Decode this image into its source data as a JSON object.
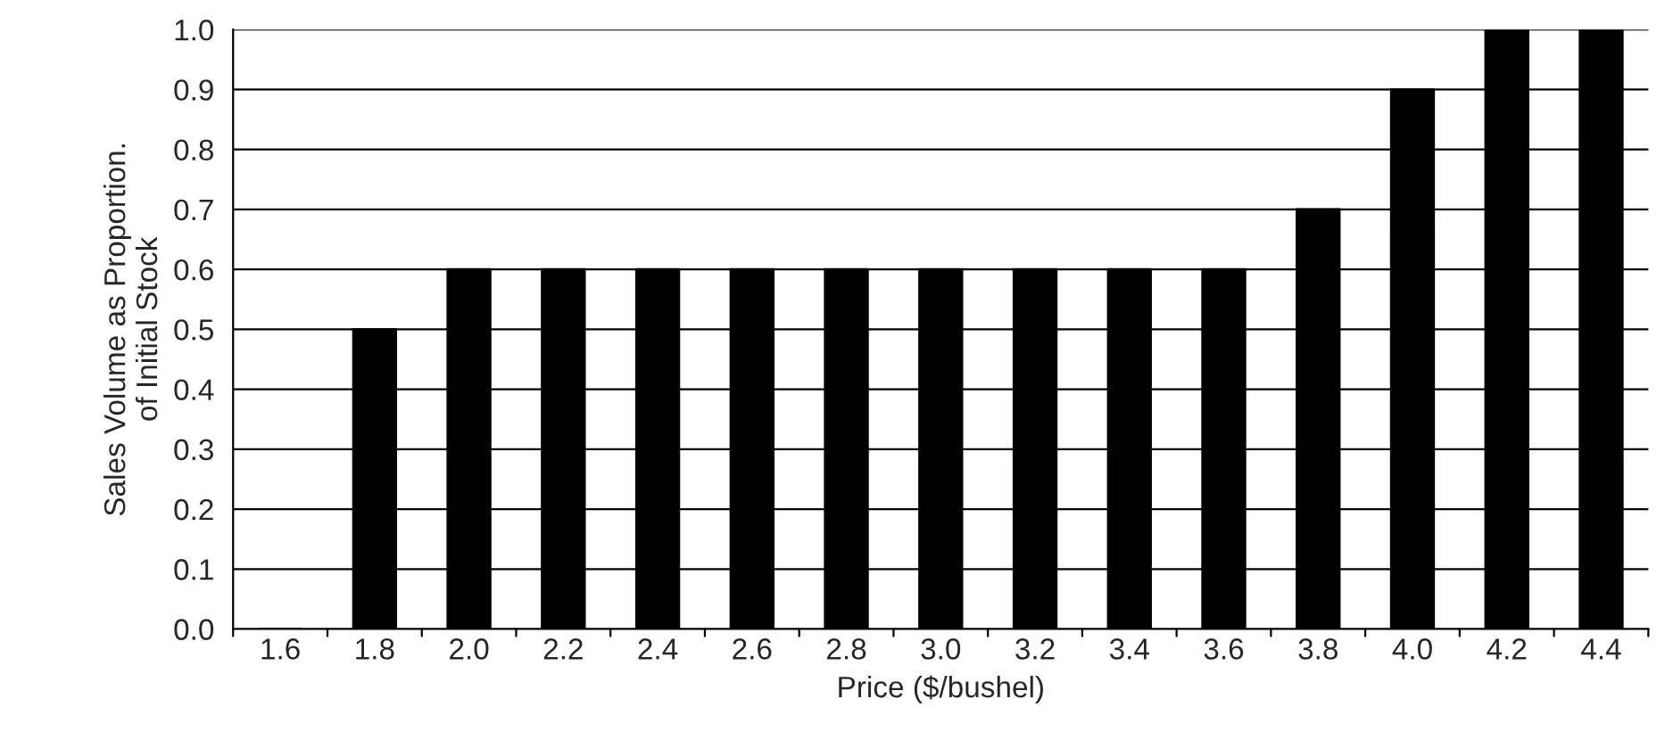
{
  "chart_data": {
    "type": "bar",
    "xlabel": "Price ($/bushel)",
    "ylabel": "Sales Volume as Proportion.\nof Initial Stock",
    "categories": [
      "1.6",
      "1.8",
      "2.0",
      "2.2",
      "2.4",
      "2.6",
      "2.8",
      "3.0",
      "3.2",
      "3.4",
      "3.6",
      "3.8",
      "4.0",
      "4.2",
      "4.4"
    ],
    "values": [
      0.0,
      0.5,
      0.6,
      0.6,
      0.6,
      0.6,
      0.6,
      0.6,
      0.6,
      0.6,
      0.6,
      0.7,
      0.9,
      1.0,
      1.0
    ],
    "color": "#000000",
    "ylim": [
      0.0,
      1.0
    ],
    "yticks": [
      {
        "value": 0,
        "label": "0.0"
      },
      0.1,
      0.2,
      0.3,
      0.4,
      0.5,
      0.6,
      0.7,
      0.8,
      0.9,
      {
        "value": 1,
        "label": "1.0"
      }
    ],
    "grid": "y"
  }
}
